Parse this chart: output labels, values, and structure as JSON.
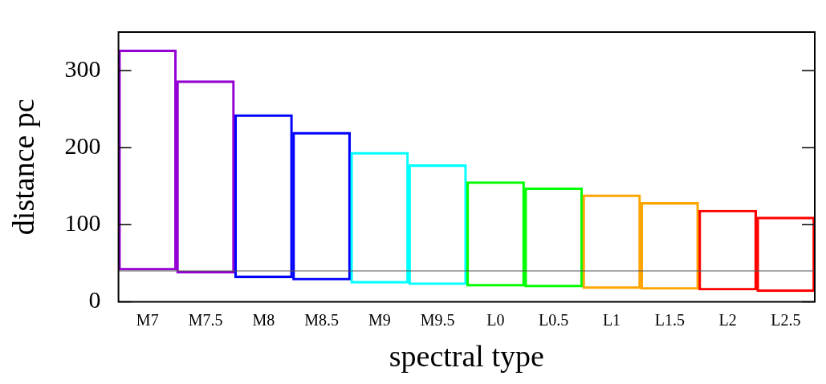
{
  "chart_data": {
    "type": "bar",
    "xlabel": "spectral type",
    "ylabel": "distance pc",
    "categories": [
      "M7",
      "M7.5",
      "M8",
      "M8.5",
      "M9",
      "M9.5",
      "L0",
      "L0.5",
      "L1",
      "L1.5",
      "L2",
      "L2.5"
    ],
    "base": [
      41,
      37,
      31,
      28,
      24,
      22,
      20,
      19,
      17,
      16,
      15,
      13
    ],
    "values": [
      286,
      250,
      212,
      192,
      170,
      156,
      136,
      129,
      122,
      113,
      104,
      97
    ],
    "colors": [
      "#9400d3",
      "#9400d3",
      "#0000ff",
      "#0000ff",
      "#00ffff",
      "#00ffff",
      "#00ff00",
      "#00ff00",
      "#ffa500",
      "#ffa500",
      "#ff0000",
      "#ff0000"
    ],
    "ylim": [
      0,
      350
    ],
    "yticks": [
      0,
      100,
      200,
      300
    ],
    "grid": false,
    "legend": false,
    "ref_lines": [
      {
        "axis": "y",
        "value": 40,
        "color": "#555555"
      }
    ]
  }
}
